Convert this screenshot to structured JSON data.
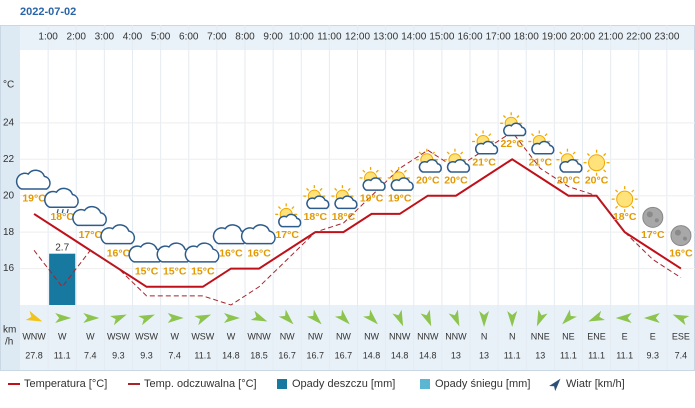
{
  "date": "2022-07-02",
  "chart_data": {
    "type": "line",
    "y_label": "°C",
    "categories": [
      null,
      "1:00",
      "2:00",
      "3:00",
      "4:00",
      "5:00",
      "6:00",
      "7:00",
      "8:00",
      "9:00",
      "10:00",
      "11:00",
      "12:00",
      "13:00",
      "14:00",
      "15:00",
      "16:00",
      "17:00",
      "18:00",
      "19:00",
      "20:00",
      "21:00",
      "22:00",
      "23:00"
    ],
    "ylim": [
      14,
      28
    ],
    "yticks": [
      16,
      18,
      20,
      22,
      24
    ],
    "grid": true,
    "series": [
      {
        "name": "Temperatura [°C]",
        "color": "#c0101a",
        "values": [
          19,
          18,
          17,
          16,
          15,
          15,
          15,
          16,
          16,
          17,
          18,
          18,
          19,
          19,
          20,
          20,
          21,
          22,
          21,
          20,
          20,
          18,
          17,
          16
        ],
        "value_labels": [
          "19°C",
          "18°C",
          "17°C",
          "16°C",
          "15°C",
          "15°C",
          "15°C",
          "16°C",
          "16°C",
          "17°C",
          "18°C",
          "18°C",
          "19°C",
          "19°C",
          "20°C",
          "20°C",
          "21°C",
          "22°C",
          "21°C",
          "20°C",
          "20°C",
          "18°C",
          "17°C",
          "16°C"
        ]
      },
      {
        "name": "Temp. odczuwalna [°C]",
        "color": "#a8232a",
        "dashed": true,
        "values": [
          17,
          15,
          17,
          16,
          14.5,
          14.5,
          14.5,
          14,
          15,
          16.5,
          18,
          18.5,
          20,
          21.5,
          22.5,
          21.5,
          22.5,
          23.5,
          21.5,
          20.5,
          20,
          18,
          16.5,
          15.5
        ]
      }
    ],
    "precipitation": [
      {
        "name": "Opady deszczu [mm]",
        "color": "#17799f",
        "values": [
          0,
          2.7,
          0,
          0,
          0,
          0,
          0,
          0,
          0,
          0,
          0,
          0,
          0,
          0,
          0,
          0,
          0,
          0,
          0,
          0,
          0,
          0,
          0,
          0
        ]
      },
      {
        "name": "Opady śniegu [mm]",
        "color": "#5ab6d2",
        "values": [
          0,
          0,
          0,
          0,
          0,
          0,
          0,
          0,
          0,
          0,
          0,
          0,
          0,
          0,
          0,
          0,
          0,
          0,
          0,
          0,
          0,
          0,
          0,
          0
        ]
      }
    ],
    "wind": {
      "name": "Wiatr [km/h]",
      "unit_lines": [
        "km",
        "/h"
      ],
      "directions": [
        "WNW",
        "W",
        "W",
        "WSW",
        "WSW",
        "W",
        "WSW",
        "W",
        "WNW",
        "NW",
        "NW",
        "NW",
        "NW",
        "NNW",
        "NNW",
        "NNW",
        "N",
        "N",
        "NNE",
        "NE",
        "ENE",
        "E",
        "E",
        "ESE"
      ],
      "speeds": [
        27.8,
        11.1,
        7.4,
        9.3,
        9.3,
        7.4,
        11.1,
        14.8,
        18.5,
        16.7,
        16.7,
        16.7,
        14.8,
        14.8,
        14.8,
        13,
        13,
        11.1,
        13,
        11.1,
        11.1,
        11.1,
        9.3,
        7.4
      ]
    }
  }
}
